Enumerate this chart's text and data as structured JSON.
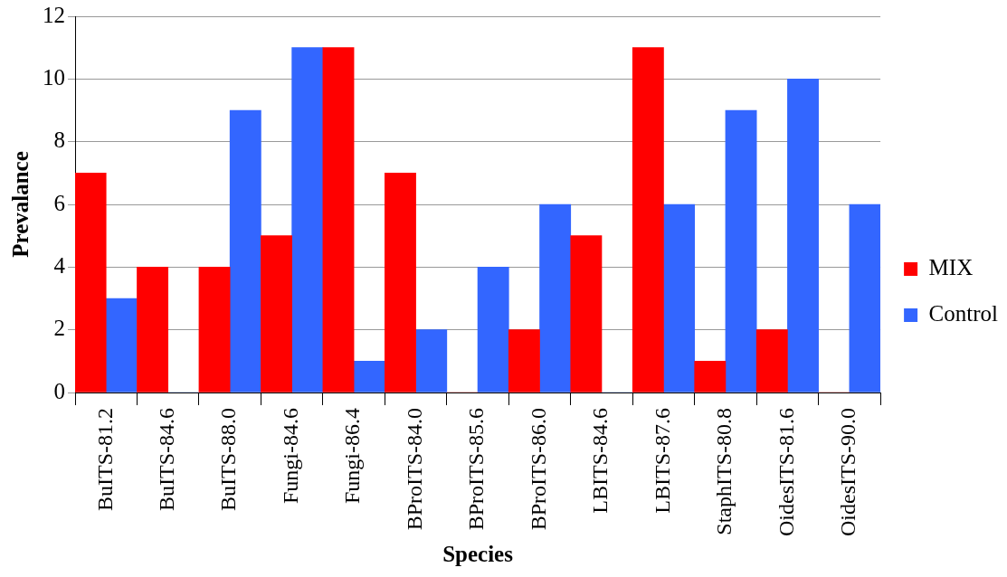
{
  "chart_data": {
    "type": "bar",
    "xlabel": "Species",
    "ylabel": "Prevalance",
    "categories": [
      "BuITS-81.2",
      "BuITS-84.6",
      "BuITS-88.0",
      "Fungi-84.6",
      "Fungi-86.4",
      "BProITS-84.0",
      "BProITS-85.6",
      "BProITS-86.0",
      "LBITS-84.6",
      "LBITS-87.6",
      "StaphITS-80.8",
      "OidesITS-81.6",
      "OidesITS-90.0"
    ],
    "series": [
      {
        "name": "MIX",
        "color": "#ff0000",
        "values": [
          7,
          4,
          4,
          5,
          11,
          7,
          0,
          2,
          5,
          11,
          1,
          2,
          0
        ]
      },
      {
        "name": "Control",
        "color": "#3366ff",
        "values": [
          3,
          0,
          9,
          11,
          1,
          2,
          4,
          6,
          0,
          6,
          9,
          10,
          6
        ]
      }
    ],
    "ylim": [
      0,
      12
    ],
    "yticks": [
      0,
      2,
      4,
      6,
      8,
      10,
      12
    ],
    "grid": "y",
    "legend": "right"
  }
}
